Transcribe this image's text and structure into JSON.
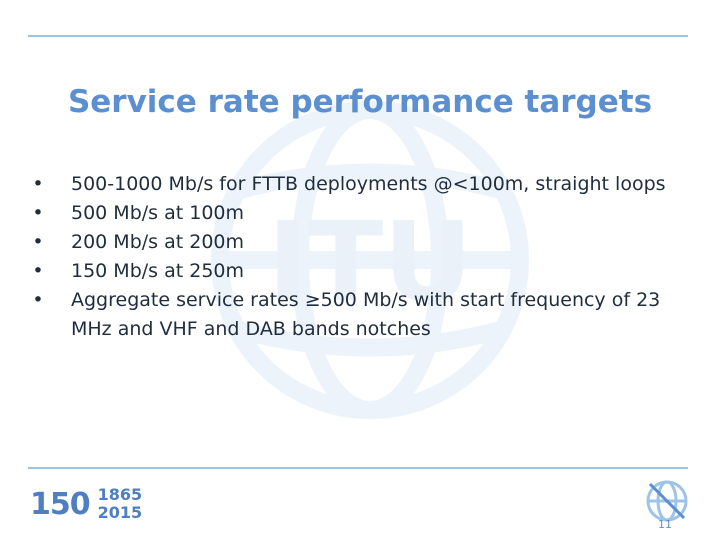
{
  "slide": {
    "title": "Service rate performance targets",
    "bullets": [
      "500-1000 Mb/s for FTTB deployments @<100m, straight loops",
      "500 Mb/s at 100m",
      "200 Mb/s at 200m",
      "150 Mb/s at 250m",
      "Aggregate service rates ≥500 Mb/s with start frequency of 23 MHz and VHF and DAB bands notches"
    ],
    "bullet_glyph": "•",
    "page_number": "11"
  },
  "footer": {
    "anniversary_number": "150",
    "anniversary_years": [
      "1865",
      "2015"
    ]
  },
  "watermark": {
    "text": "ITU"
  },
  "colors": {
    "accent": "#5b8fd0",
    "rule": "#9dc3e6",
    "text": "#1f2d3d"
  }
}
